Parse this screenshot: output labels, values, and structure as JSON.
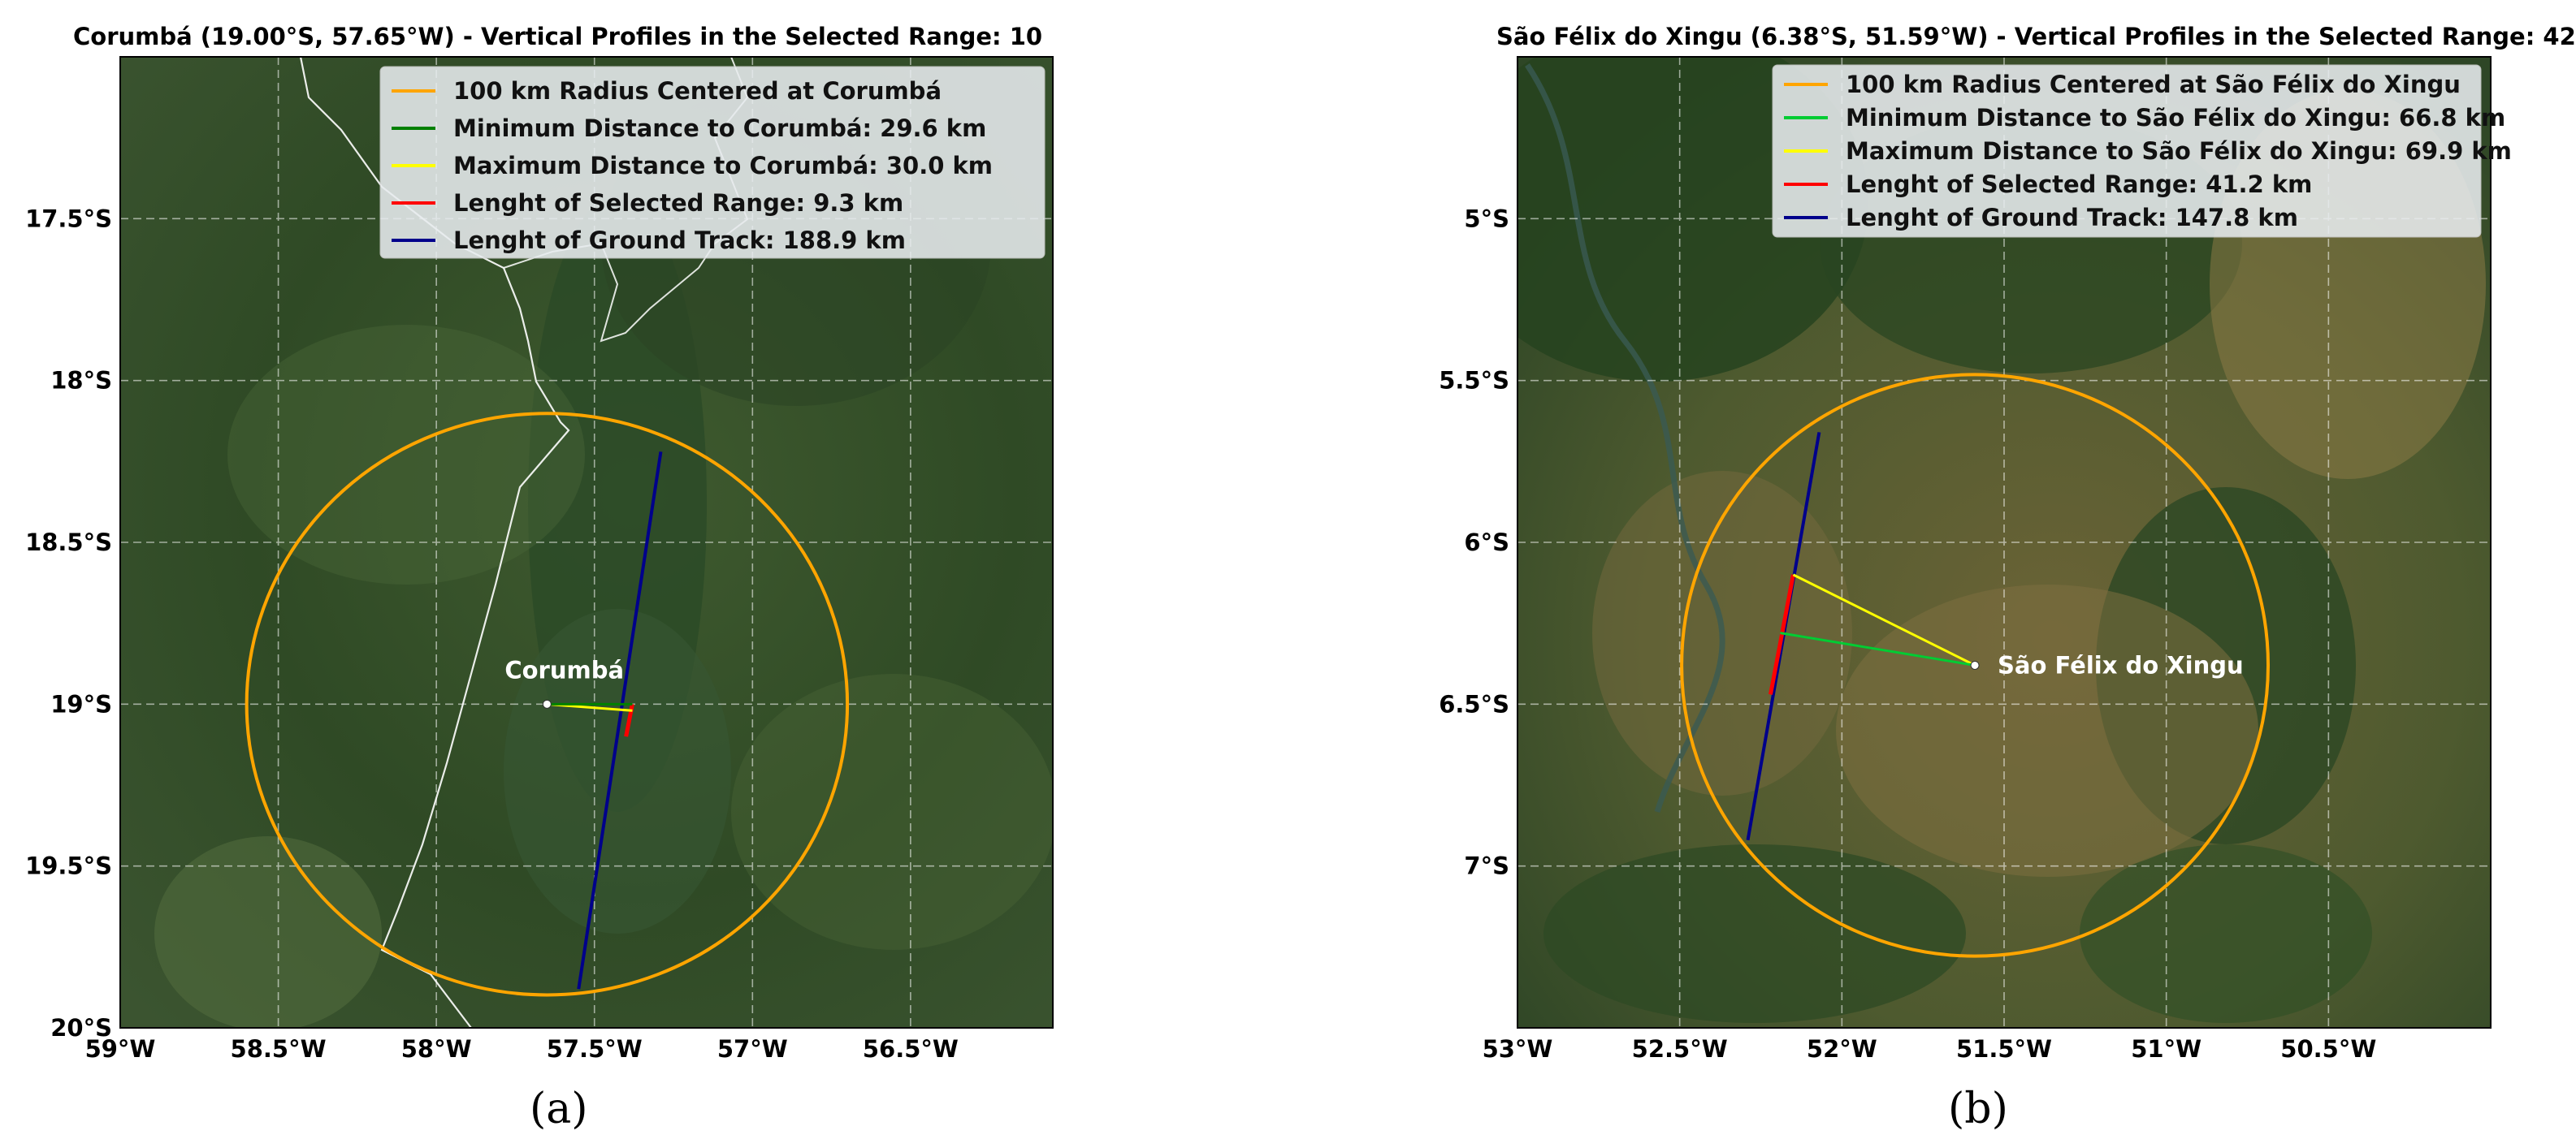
{
  "panels": [
    {
      "title": "Corumbá (19.00°S, 57.65°W) - Vertical Profiles in the Selected Range: 10",
      "sublabel": "(a)",
      "city_label": "Corumbá",
      "y_ticks": [
        "17.5°S",
        "18°S",
        "18.5°S",
        "19°S",
        "19.5°S",
        "20°S"
      ],
      "x_ticks": [
        "59°W",
        "58.5°W",
        "58°W",
        "57.5°W",
        "57°W",
        "56.5°W"
      ],
      "legend": [
        {
          "label": "100 km Radius Centered at Corumbá",
          "color": "#ffa500"
        },
        {
          "label": "Minimum Distance to Corumbá: 29.6 km",
          "color": "#008000"
        },
        {
          "label": "Maximum Distance to Corumbá: 30.0 km",
          "color": "#ffff00"
        },
        {
          "label": "Lenght of Selected Range: 9.3 km",
          "color": "#ff0000"
        },
        {
          "label": "Lenght of Ground Track: 188.9 km",
          "color": "#00008b"
        }
      ],
      "center": {
        "lat": -19.0,
        "lon": -57.65
      },
      "ground_track": [
        {
          "lat": -18.22,
          "lon": -57.29
        },
        {
          "lat": -19.88,
          "lon": -57.55
        }
      ],
      "selected_range": [
        {
          "lat": -19.0,
          "lon": -57.38
        },
        {
          "lat": -19.1,
          "lon": -57.4
        }
      ],
      "min_distance_point": {
        "lat": -19.0,
        "lon": -57.38
      },
      "max_distance_point": {
        "lat": -19.02,
        "lon": -57.38
      }
    },
    {
      "title": "São Félix do Xingu (6.38°S, 51.59°W) - Vertical Profiles in the Selected Range: 42",
      "sublabel": "(b)",
      "city_label": "São Félix do Xingu",
      "y_ticks": [
        "5°S",
        "5.5°S",
        "6°S",
        "6.5°S",
        "7°S"
      ],
      "x_ticks": [
        "53°W",
        "52.5°W",
        "52°W",
        "51.5°W",
        "51°W",
        "50.5°W"
      ],
      "legend": [
        {
          "label": "100 km Radius Centered at São Félix do Xingu",
          "color": "#ffa500"
        },
        {
          "label": "Minimum Distance to São Félix do Xingu: 66.8 km",
          "color": "#00cc33"
        },
        {
          "label": "Maximum Distance to São Félix do Xingu: 69.9 km",
          "color": "#ffff00"
        },
        {
          "label": "Lenght of Selected Range: 41.2 km",
          "color": "#ff0000"
        },
        {
          "label": "Lenght of Ground Track: 147.8 km",
          "color": "#00008b"
        }
      ],
      "center": {
        "lat": -6.38,
        "lon": -51.59
      },
      "ground_track": [
        {
          "lat": -5.66,
          "lon": -52.07
        },
        {
          "lat": -6.92,
          "lon": -52.29
        }
      ],
      "selected_range": [
        {
          "lat": -6.1,
          "lon": -52.15
        },
        {
          "lat": -6.47,
          "lon": -52.22
        }
      ],
      "min_distance_point": {
        "lat": -6.28,
        "lon": -52.19
      },
      "max_distance_point": {
        "lat": -6.1,
        "lon": -52.15
      }
    }
  ]
}
